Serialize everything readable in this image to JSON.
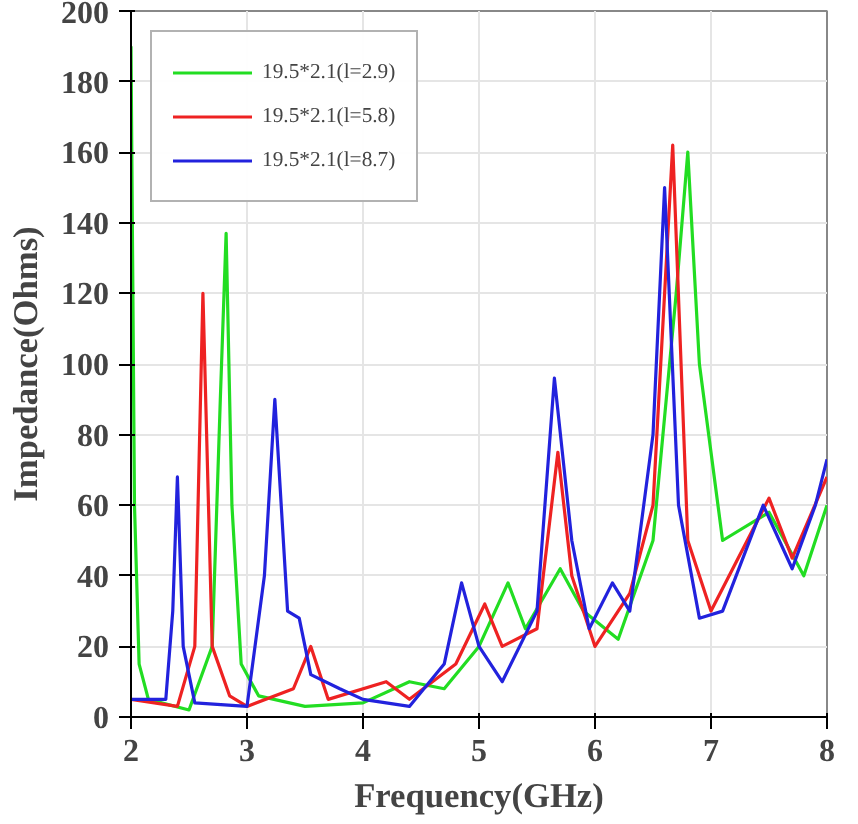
{
  "chart_data": {
    "type": "line",
    "xlabel": "Frequency(GHz)",
    "ylabel": "Impedance(Ohms)",
    "xlim": [
      2,
      8
    ],
    "xticks": [
      2,
      3,
      4,
      5,
      6,
      7,
      8
    ],
    "ylim": [
      0,
      200
    ],
    "yticks": [
      0,
      20,
      40,
      60,
      80,
      100,
      120,
      140,
      160,
      180,
      200
    ],
    "grid": true,
    "legend": "top left",
    "line_style": "solid",
    "series": [
      {
        "name": "19.5*2.1(l=2.9)",
        "color": "#22dd22",
        "x": [
          2.0,
          2.03,
          2.07,
          2.15,
          2.5,
          2.7,
          2.77,
          2.82,
          2.87,
          2.95,
          3.1,
          3.5,
          4.0,
          4.4,
          4.7,
          5.0,
          5.25,
          5.4,
          5.7,
          5.9,
          6.2,
          6.5,
          6.7,
          6.8,
          6.9,
          7.1,
          7.5,
          7.8,
          8.0
        ],
        "values": [
          190,
          60,
          15,
          5,
          2,
          20,
          90,
          137,
          60,
          15,
          6,
          3,
          4,
          10,
          8,
          20,
          38,
          25,
          42,
          30,
          22,
          50,
          120,
          160,
          100,
          50,
          58,
          40,
          60
        ]
      },
      {
        "name": "19.5*2.1(l=5.8)",
        "color": "#ee2222",
        "x": [
          2.0,
          2.4,
          2.55,
          2.62,
          2.7,
          2.85,
          3.0,
          3.4,
          3.55,
          3.7,
          4.2,
          4.4,
          4.8,
          5.05,
          5.2,
          5.5,
          5.68,
          5.8,
          6.0,
          6.3,
          6.5,
          6.67,
          6.8,
          7.0,
          7.5,
          7.7,
          8.0
        ],
        "values": [
          5,
          3,
          20,
          120,
          20,
          6,
          3,
          8,
          20,
          5,
          10,
          5,
          15,
          32,
          20,
          25,
          75,
          40,
          20,
          35,
          60,
          162,
          50,
          30,
          62,
          45,
          68
        ]
      },
      {
        "name": "19.5*2.1(l=8.7)",
        "color": "#2222dd",
        "x": [
          2.0,
          2.3,
          2.36,
          2.4,
          2.45,
          2.55,
          3.0,
          3.15,
          3.24,
          3.35,
          3.45,
          3.55,
          3.8,
          4.0,
          4.4,
          4.7,
          4.85,
          5.0,
          5.2,
          5.5,
          5.65,
          5.8,
          5.95,
          6.15,
          6.3,
          6.5,
          6.6,
          6.72,
          6.9,
          7.1,
          7.45,
          7.7,
          7.9,
          8.0
        ],
        "values": [
          5,
          5,
          30,
          68,
          20,
          4,
          3,
          40,
          90,
          30,
          28,
          12,
          8,
          5,
          3,
          15,
          38,
          20,
          10,
          30,
          96,
          50,
          25,
          38,
          30,
          80,
          150,
          60,
          28,
          30,
          60,
          42,
          60,
          73
        ]
      }
    ]
  }
}
